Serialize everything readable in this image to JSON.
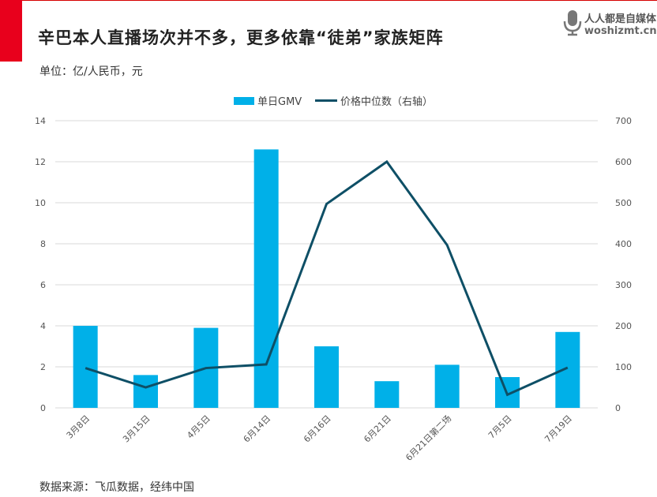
{
  "header": {
    "title": "辛巴本人直播场次并不多，更多依靠“徒弟”家族矩阵",
    "unit": "单位：亿/人民币，元"
  },
  "footer": {
    "source": "数据来源：飞瓜数据，经纬中国"
  },
  "watermark": {
    "name": "人人都是自媒体",
    "url": "woshizmt.cn"
  },
  "colors": {
    "bar": "#00b0e8",
    "line": "#0e4f66",
    "accent": "#e8001c",
    "grid": "#d9d9d9"
  },
  "chart_data": {
    "type": "bar",
    "categories": [
      "3月8日",
      "3月15日",
      "4月5日",
      "6月14日",
      "6月16日",
      "6月21日",
      "6月21日第二场",
      "7月5日",
      "7月19日"
    ],
    "series": [
      {
        "name": "单日GMV",
        "type": "bar",
        "axis": "left",
        "values": [
          4.0,
          1.6,
          3.9,
          12.6,
          3.0,
          1.3,
          2.1,
          1.5,
          3.7
        ]
      },
      {
        "name": "价格中位数（右轴）",
        "type": "line",
        "axis": "right",
        "values": [
          97,
          50,
          97,
          106,
          497,
          600,
          397,
          32,
          98
        ]
      }
    ],
    "y_left": {
      "min": 0,
      "max": 14,
      "ticks": [
        0,
        2,
        4,
        6,
        8,
        10,
        12,
        14
      ]
    },
    "y_right": {
      "min": 0,
      "max": 700,
      "ticks": [
        0,
        100,
        200,
        300,
        400,
        500,
        600,
        700
      ]
    },
    "grid": true,
    "legend_position": "top"
  }
}
